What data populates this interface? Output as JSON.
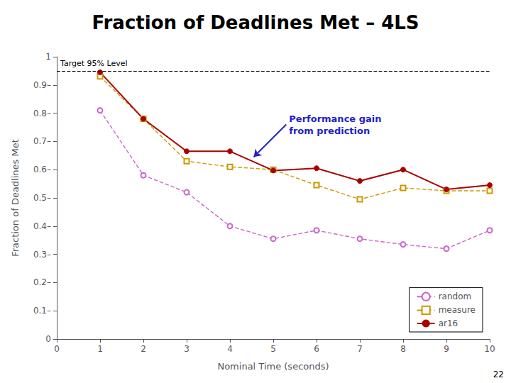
{
  "chart_data": {
    "type": "line",
    "title": "Fraction of Deadlines Met – 4LS",
    "xlabel": "Nominal Time (seconds)",
    "ylabel": "Fraction of Deadlines Met",
    "xlim": [
      0,
      10
    ],
    "xticks": [
      0,
      1,
      2,
      3,
      4,
      5,
      6,
      7,
      8,
      9,
      10
    ],
    "ylim": [
      0,
      1.0
    ],
    "yticks": [
      0,
      {
        "value": 0.1,
        "label": "0.1–"
      },
      {
        "value": 0.2,
        "label": "0.2–"
      },
      {
        "value": 0.3,
        "label": "0.3–"
      },
      {
        "value": 0.4,
        "label": "0.4–"
      },
      {
        "value": 0.5,
        "label": "0.5–"
      },
      {
        "value": 0.6,
        "label": "0.6–"
      },
      {
        "value": 0.7,
        "label": "0.7–"
      },
      {
        "value": 0.8,
        "label": "0.8–"
      },
      {
        "value": 0.9,
        "label": "0.9–"
      },
      1
    ],
    "grid": false,
    "legend": "lower right",
    "series": [
      {
        "name": "random",
        "color": "#cc66cc",
        "line_style": "dashed",
        "marker": "circle_open",
        "x": [
          1,
          2,
          3,
          4,
          5,
          6,
          7,
          8,
          9,
          10
        ],
        "values": [
          0.81,
          0.58,
          0.52,
          0.4,
          0.355,
          0.385,
          0.355,
          0.335,
          0.32,
          0.385
        ]
      },
      {
        "name": "measure",
        "color": "#cc9900",
        "line_style": "dashed",
        "marker": "square_open",
        "x": [
          1,
          2,
          3,
          4,
          5,
          6,
          7,
          8,
          9,
          10
        ],
        "values": [
          0.93,
          0.78,
          0.63,
          0.61,
          0.6,
          0.545,
          0.495,
          0.535,
          0.525,
          0.525
        ]
      },
      {
        "name": "ar16",
        "color": "#aa0000",
        "line_style": "solid",
        "marker": "circle",
        "x": [
          1,
          2,
          3,
          4,
          5,
          6,
          7,
          8,
          9,
          10
        ],
        "values": [
          0.945,
          0.78,
          0.665,
          0.665,
          0.597,
          0.605,
          0.56,
          0.6,
          0.53,
          0.545
        ]
      }
    ],
    "hlines": [
      {
        "y": 0.95,
        "label": "Target 95% Level",
        "color": "#000000",
        "line_style": "dashed"
      }
    ],
    "annotations": [
      {
        "text": "Performance gain\nfrom prediction",
        "color": "#2222cc",
        "x": 4.55,
        "y": 0.645,
        "xytext": [
          5.3,
          0.76
        ]
      }
    ],
    "footer": "22"
  }
}
